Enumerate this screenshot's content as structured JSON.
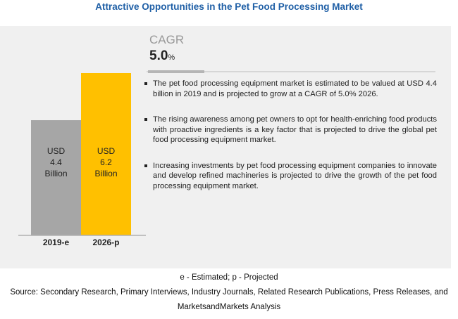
{
  "title": "Attractive Opportunities in the Pet Food Processing Market",
  "cagr": {
    "label": "CAGR",
    "value": "5.0",
    "unit": "%"
  },
  "bullets": [
    "The pet food processing equipment market is estimated to be valued at USD 4.4 billion in 2019 and is projected to grow at a CAGR of 5.0% 2026.",
    "The rising awareness among pet owners to opt for health-enriching food products with proactive ingredients is a key factor that is projected to drive the global pet food processing equipment market.",
    "Increasing investments by pet food processing equipment companies to innovate and develop refined machineries is projected to drive the growth of the pet food processing equipment market."
  ],
  "footnotes": {
    "legend": "e - Estimated; p - Projected",
    "source_1": "Source: Secondary Research, Primary Interviews, Industry Journals, Related Research Publications, Press Releases, and",
    "source_2": "MarketsandMarkets Analysis"
  },
  "chart_data": {
    "type": "bar",
    "categories": [
      "2019-e",
      "2026-p"
    ],
    "values": [
      4.4,
      6.2
    ],
    "unit": "USD Billion",
    "data_labels": [
      [
        "USD",
        "4.4",
        "Billion"
      ],
      [
        "USD",
        "6.2",
        "Billion"
      ]
    ],
    "colors": [
      "#a6a6a6",
      "#ffc000"
    ],
    "ylim": [
      0,
      6.2
    ],
    "grid": false
  }
}
